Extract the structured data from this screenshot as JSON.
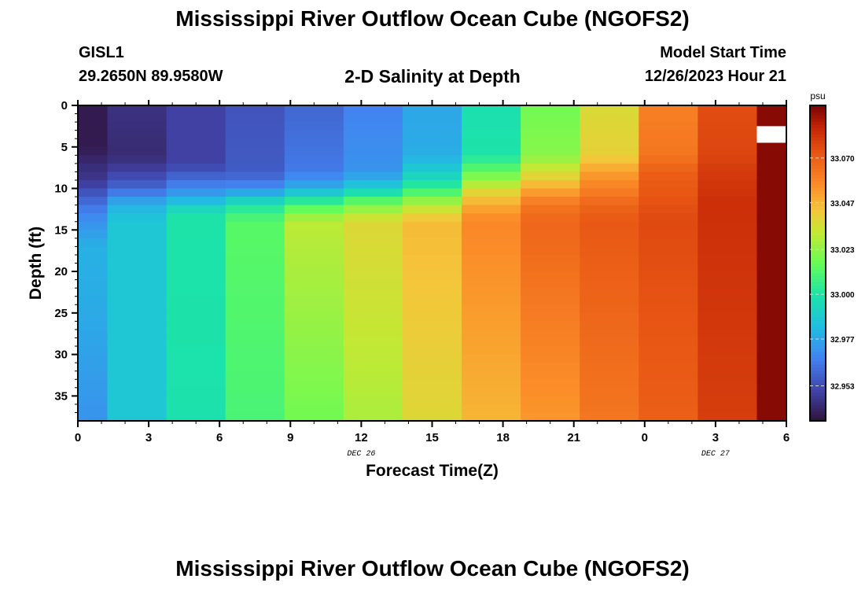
{
  "header": {
    "title": "Mississippi River Outflow Ocean Cube (NGOFS2)",
    "station_id": "GISL1",
    "station_coords": "29.2650N  89.9580W",
    "subtitle": "2-D Salinity at Depth",
    "model_start_label": "Model Start Time",
    "model_start_value": "12/26/2023 Hour 21"
  },
  "footer": {
    "title": "Mississippi River Outflow Ocean Cube (NGOFS2)"
  },
  "chart_data": {
    "type": "heatmap",
    "title": "2-D Salinity at Depth",
    "xlabel": "Forecast Time(Z)",
    "ylabel": "Depth (ft)",
    "x_tick_labels": [
      "0",
      "3",
      "6",
      "9",
      "12",
      "15",
      "18",
      "21",
      "0",
      "3",
      "6"
    ],
    "x_date_labels": [
      {
        "label": "DEC 26",
        "at_tick": 4
      },
      {
        "label": "DEC 27",
        "at_tick": 9
      }
    ],
    "x_range_hours": [
      0,
      30
    ],
    "y_tick_labels": [
      "0",
      "5",
      "10",
      "15",
      "20",
      "25",
      "30",
      "35"
    ],
    "y_range_ft": [
      0,
      38
    ],
    "colorbar": {
      "unit": "psu",
      "tick_labels": [
        "32.953",
        "32.977",
        "33.000",
        "33.023",
        "33.047",
        "33.070"
      ],
      "range": [
        32.935,
        33.097
      ]
    },
    "columns": [
      {
        "hours": [
          0,
          1.25
        ],
        "profile": [
          [
            0,
            32.938
          ],
          [
            5,
            32.938
          ],
          [
            7,
            32.943
          ],
          [
            9,
            32.947
          ],
          [
            11,
            32.958
          ],
          [
            13,
            32.968
          ],
          [
            17,
            32.98
          ],
          [
            25,
            32.978
          ],
          [
            38,
            32.972
          ]
        ]
      },
      {
        "hours": [
          1.25,
          3.75
        ],
        "profile": [
          [
            0,
            32.945
          ],
          [
            6,
            32.943
          ],
          [
            8,
            32.95
          ],
          [
            10,
            32.96
          ],
          [
            12,
            32.98
          ],
          [
            14,
            32.987
          ],
          [
            38,
            32.987
          ]
        ]
      },
      {
        "hours": [
          3.75,
          6.25
        ],
        "profile": [
          [
            0,
            32.95
          ],
          [
            7,
            32.95
          ],
          [
            9,
            32.962
          ],
          [
            11,
            32.977
          ],
          [
            13,
            33.0
          ],
          [
            38,
            32.999
          ]
        ]
      },
      {
        "hours": [
          6.25,
          8.75
        ],
        "profile": [
          [
            0,
            32.955
          ],
          [
            8,
            32.957
          ],
          [
            10,
            32.97
          ],
          [
            12,
            33.0
          ],
          [
            14,
            33.013
          ],
          [
            38,
            33.01
          ]
        ]
      },
      {
        "hours": [
          8.75,
          11.25
        ],
        "profile": [
          [
            0,
            32.96
          ],
          [
            8,
            32.965
          ],
          [
            10,
            32.98
          ],
          [
            12,
            33.01
          ],
          [
            14,
            33.031
          ],
          [
            38,
            33.018
          ]
        ]
      },
      {
        "hours": [
          11.25,
          13.75
        ],
        "profile": [
          [
            0,
            32.967
          ],
          [
            8,
            32.972
          ],
          [
            10,
            32.99
          ],
          [
            12,
            33.02
          ],
          [
            14,
            33.038
          ],
          [
            38,
            33.028
          ]
        ]
      },
      {
        "hours": [
          13.75,
          16.25
        ],
        "profile": [
          [
            0,
            32.977
          ],
          [
            6,
            32.979
          ],
          [
            8,
            32.99
          ],
          [
            10,
            33.005
          ],
          [
            12,
            33.03
          ],
          [
            14,
            33.046
          ],
          [
            38,
            33.038
          ]
        ]
      },
      {
        "hours": [
          16.25,
          18.75
        ],
        "profile": [
          [
            0,
            32.998
          ],
          [
            6,
            33.0
          ],
          [
            8,
            33.015
          ],
          [
            10,
            33.035
          ],
          [
            12,
            33.05
          ],
          [
            14,
            33.058
          ],
          [
            38,
            33.047
          ]
        ]
      },
      {
        "hours": [
          18.75,
          21.25
        ],
        "profile": [
          [
            0,
            33.018
          ],
          [
            6,
            33.022
          ],
          [
            8,
            33.035
          ],
          [
            10,
            33.05
          ],
          [
            12,
            33.063
          ],
          [
            14,
            33.068
          ],
          [
            38,
            33.054
          ]
        ]
      },
      {
        "hours": [
          21.25,
          23.75
        ],
        "profile": [
          [
            0,
            33.037
          ],
          [
            6,
            33.04
          ],
          [
            8,
            33.052
          ],
          [
            10,
            33.06
          ],
          [
            12,
            33.068
          ],
          [
            14,
            33.072
          ],
          [
            38,
            33.063
          ]
        ]
      },
      {
        "hours": [
          23.75,
          26.25
        ],
        "profile": [
          [
            0,
            33.06
          ],
          [
            6,
            33.063
          ],
          [
            8,
            33.07
          ],
          [
            10,
            33.072
          ],
          [
            14,
            33.076
          ],
          [
            38,
            33.07
          ]
        ]
      },
      {
        "hours": [
          26.25,
          28.75
        ],
        "profile": [
          [
            0,
            33.075
          ],
          [
            6,
            33.077
          ],
          [
            8,
            33.08
          ],
          [
            12,
            33.083
          ],
          [
            38,
            33.079
          ]
        ]
      },
      {
        "hours": [
          28.75,
          30
        ],
        "profile": [
          [
            0,
            33.095
          ],
          [
            38,
            33.095
          ]
        ]
      }
    ],
    "missing_cells": [
      {
        "hours": [
          28.75,
          30
        ],
        "depth": [
          2.5,
          4.5
        ]
      }
    ],
    "grid": false
  }
}
